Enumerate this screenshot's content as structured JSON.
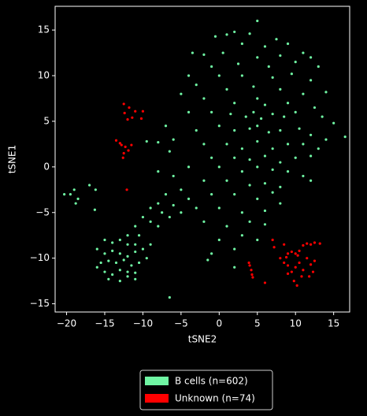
{
  "chart_data": {
    "type": "scatter",
    "xlabel": "tSNE2",
    "ylabel": "tSNE1",
    "xlim": [
      -21.5,
      17.1
    ],
    "ylim": [
      -15.9,
      17.6
    ],
    "xticks": [
      {
        "value": -20,
        "label": "−20"
      },
      {
        "value": -15,
        "label": "−15"
      },
      {
        "value": -10,
        "label": "−10"
      },
      {
        "value": -5,
        "label": "−5"
      },
      0,
      5,
      10,
      15
    ],
    "yticks": [
      {
        "value": -15,
        "label": "−15"
      },
      {
        "value": -10,
        "label": "−10"
      },
      {
        "value": -5,
        "label": "−5"
      },
      0,
      5,
      10,
      15
    ],
    "legend": "below",
    "series": [
      {
        "name": "B cells (n=602)",
        "color": "#6ff5a3",
        "x": [
          5,
          2,
          1,
          4,
          -0.5,
          7.5,
          3,
          6,
          9,
          -2,
          0.5,
          5,
          8,
          11,
          12,
          -3.5,
          -1,
          2.5,
          6.5,
          10,
          13,
          -4,
          0,
          3,
          7,
          9.5,
          12,
          -3,
          1,
          4.5,
          8,
          11,
          14,
          -5,
          -2,
          2,
          5,
          6,
          9,
          12.5,
          -4,
          -1,
          1.5,
          3.5,
          4.5,
          5.5,
          7,
          8.5,
          10,
          13.5,
          15,
          16.5,
          -7,
          -3,
          0,
          2,
          4,
          5,
          6.5,
          8,
          10.5,
          12,
          14,
          -6,
          -2,
          1,
          3,
          5,
          7,
          9,
          11,
          13,
          -8,
          -9.5,
          -6.5,
          -1,
          2,
          4,
          6,
          8,
          10,
          12,
          -4,
          0,
          3,
          5,
          7,
          9,
          11,
          -6,
          -2,
          1,
          4,
          6,
          8,
          12,
          -8,
          -5,
          -1,
          2,
          5,
          7,
          -3,
          0,
          3,
          6,
          8,
          -2,
          1,
          4,
          6,
          0,
          3,
          5,
          -1,
          2,
          -1.5,
          2,
          -7,
          -8,
          -9,
          -6,
          -7.5,
          -10,
          -9,
          -11,
          -8,
          -6.5,
          -10.5,
          -12,
          -5,
          -4,
          -15,
          -14,
          -13,
          -12,
          -11,
          -16,
          -15,
          -14,
          -13,
          -12,
          -11,
          -10,
          -15.5,
          -14.5,
          -13.5,
          -12.5,
          -11.5,
          -10.5,
          -15,
          -14,
          -13,
          -12,
          -11,
          -14.5,
          -13,
          -12,
          -11,
          -9.5,
          -9,
          -16,
          -19,
          -19.5,
          -18.5,
          -18.8,
          -20.3,
          -17,
          -16.2,
          -16.3,
          -6.5
        ],
        "y": [
          16,
          14.8,
          14.5,
          14.6,
          14.3,
          14,
          13.5,
          13.2,
          13.5,
          12.3,
          12.5,
          12,
          12.2,
          12.5,
          12,
          12.5,
          11,
          11.3,
          11,
          11.5,
          11,
          10,
          10,
          10,
          9.8,
          10.2,
          9.5,
          9,
          8.5,
          8.8,
          8.5,
          8,
          8.2,
          8,
          7.5,
          7,
          7.5,
          6.8,
          7,
          6.5,
          6,
          6,
          5.8,
          5.5,
          6,
          5.3,
          5.8,
          5.5,
          6,
          5.5,
          4.8,
          3.3,
          4.5,
          4,
          4.5,
          4,
          4.2,
          4.5,
          3.8,
          4,
          4.2,
          3.5,
          3,
          3,
          2.5,
          2.5,
          2,
          2.8,
          2,
          2.5,
          2.5,
          2,
          2.7,
          2.8,
          1.7,
          1,
          1,
          0.8,
          1.2,
          0.5,
          1,
          1.2,
          0,
          0,
          -0.5,
          0,
          -0.3,
          -0.5,
          -1,
          -1,
          -1.5,
          -1.5,
          -2,
          -1.8,
          -2.2,
          -1.5,
          -0.5,
          -2.5,
          -3,
          -3,
          -3.5,
          -2.8,
          -4.5,
          -4.5,
          -5,
          -4.8,
          -4,
          -6,
          -6.5,
          -6,
          -6.3,
          -8,
          -7.5,
          -8,
          -9.5,
          -9,
          -10.2,
          -11,
          -3,
          -4,
          -4.5,
          -4.2,
          -5,
          -5.5,
          -6,
          -6.5,
          -6.5,
          -5.5,
          -7.5,
          -7.5,
          -5,
          -3.5,
          -8,
          -8.3,
          -8,
          -8.5,
          -8.5,
          -9,
          -9.5,
          -9.2,
          -9.5,
          -9.8,
          -9.3,
          -9,
          -10.5,
          -10.3,
          -10.5,
          -10.2,
          -10.8,
          -10.5,
          -11.5,
          -11.8,
          -11.3,
          -11.5,
          -11.6,
          -12.3,
          -12.5,
          -12,
          -12.3,
          -10,
          -8.5,
          -11,
          -2.5,
          -3,
          -3.5,
          -4,
          -3,
          -2,
          -2.5,
          -4.7,
          -14.3
        ]
      },
      {
        "name": "Unknown (n=74)",
        "color": "#ff0000",
        "x": [
          -12.5,
          -11.8,
          -11,
          -12,
          -11.4,
          -10,
          -10.2,
          -12.4,
          -13.5,
          -13,
          -12.8,
          -12.3,
          -12.5,
          -12.6,
          -11.9,
          -11.5,
          -12.1,
          4,
          4.2,
          4.3,
          4.4,
          6,
          3.9,
          7,
          7.2,
          8.5,
          9,
          9.5,
          10,
          10.5,
          11,
          11.5,
          12,
          12.5,
          13.2,
          8,
          8.5,
          9,
          9.5,
          10,
          10.5,
          11,
          11.5,
          12,
          12.5,
          10.8,
          9.8,
          10.2,
          11.8,
          9,
          12.3,
          8.8,
          10.3
        ],
        "y": [
          6.9,
          6.5,
          6.1,
          5.2,
          5.4,
          6.1,
          5.3,
          5.9,
          2.9,
          2.6,
          2.4,
          2.2,
          1.5,
          1,
          1.8,
          2.4,
          -2.5,
          -10.8,
          -11.3,
          -11.8,
          -12.1,
          -12.7,
          -10.5,
          -8,
          -8.8,
          -8.5,
          -9.5,
          -9.3,
          -9.5,
          -9.2,
          -8.6,
          -8.4,
          -8.5,
          -8.3,
          -8.4,
          -10,
          -10.5,
          -10.8,
          -11.5,
          -11,
          -10.5,
          -11.3,
          -10,
          -10.7,
          -10.3,
          -12,
          -12.5,
          -13,
          -12,
          -11.7,
          -11.5,
          -9.9,
          -9.7
        ]
      }
    ]
  }
}
